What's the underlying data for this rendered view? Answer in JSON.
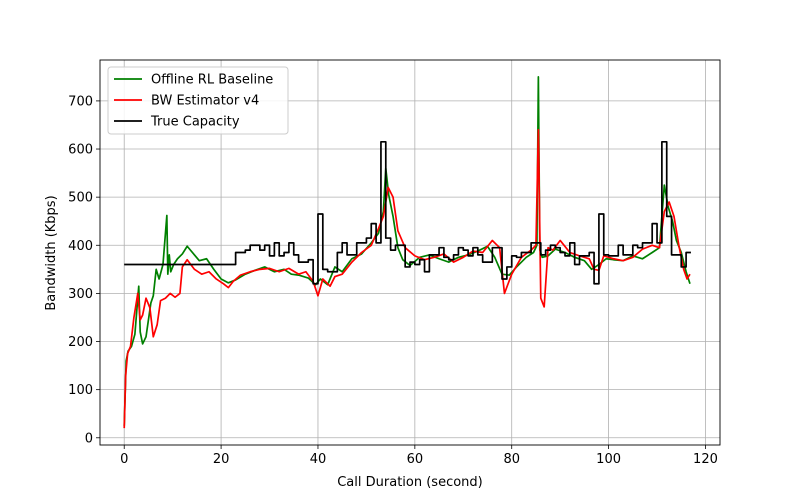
{
  "chart_data": {
    "type": "line",
    "xlabel": "Call Duration (second)",
    "ylabel": "Bandwidth (Kbps)",
    "xlim": [
      -5,
      123
    ],
    "ylim": [
      -15,
      785
    ],
    "xticks": [
      0,
      20,
      40,
      60,
      80,
      100,
      120
    ],
    "yticks": [
      0,
      100,
      200,
      300,
      400,
      500,
      600,
      700
    ],
    "grid": true,
    "legend_position": "top-left",
    "series": [
      {
        "name": "Offline RL Baseline",
        "color": "#008000",
        "x": [
          0,
          0.4,
          0.8,
          1.5,
          2.2,
          3.0,
          3.3,
          3.8,
          4.5,
          5.5,
          6.0,
          6.6,
          7.2,
          8.0,
          8.8,
          9.0,
          9.3,
          9.6,
          10.2,
          11.0,
          12.0,
          13.0,
          14.5,
          15.5,
          17.0,
          18.5,
          20.0,
          21.5,
          23.0,
          25.0,
          27.0,
          29.0,
          31.0,
          33.0,
          34.5,
          36.0,
          38.0,
          39.5,
          40.5,
          42.0,
          43.5,
          45.0,
          47.0,
          49.0,
          51.0,
          52.5,
          53.5,
          54.0,
          54.6,
          55.5,
          56.5,
          57.5,
          59.0,
          61.0,
          63.0,
          65.0,
          67.0,
          69.0,
          71.0,
          73.0,
          75.0,
          76.5,
          78.0,
          79.5,
          81.0,
          83.0,
          84.5,
          85.2,
          85.5,
          85.8,
          86.3,
          87.5,
          89.0,
          91.0,
          93.0,
          95.0,
          96.5,
          98.0,
          99.5,
          101.0,
          103.0,
          105.0,
          107.0,
          109.0,
          110.5,
          111.5,
          112.3,
          113.2,
          114.0,
          115.0,
          116.0,
          116.8
        ],
        "values": [
          25,
          160,
          180,
          190,
          215,
          315,
          220,
          195,
          210,
          280,
          295,
          350,
          330,
          360,
          462,
          340,
          380,
          345,
          360,
          372,
          382,
          398,
          380,
          368,
          372,
          350,
          330,
          322,
          328,
          340,
          348,
          355,
          345,
          350,
          340,
          338,
          332,
          318,
          330,
          318,
          355,
          345,
          372,
          382,
          405,
          425,
          470,
          560,
          505,
          460,
          395,
          370,
          358,
          375,
          380,
          372,
          365,
          375,
          380,
          388,
          398,
          375,
          340,
          338,
          355,
          375,
          385,
          400,
          750,
          390,
          375,
          378,
          392,
          385,
          375,
          368,
          350,
          360,
          372,
          370,
          368,
          378,
          372,
          385,
          395,
          525,
          480,
          450,
          410,
          385,
          345,
          320
        ]
      },
      {
        "name": "BW Estimator v4",
        "color": "#ff0000",
        "x": [
          0,
          0.3,
          0.7,
          1.3,
          2.0,
          2.8,
          3.3,
          3.8,
          4.5,
          5.3,
          6.0,
          6.8,
          7.5,
          8.5,
          9.5,
          10.5,
          11.5,
          12.0,
          13.0,
          14.5,
          16.0,
          17.5,
          19.0,
          20.5,
          21.5,
          22.5,
          24.0,
          26.0,
          28.0,
          30.0,
          32.0,
          34.0,
          36.0,
          37.5,
          39.0,
          40.0,
          41.0,
          42.5,
          43.5,
          45.0,
          47.0,
          49.0,
          51.0,
          52.5,
          53.5,
          54.5,
          55.5,
          56.5,
          58.0,
          60.0,
          62.0,
          64.0,
          66.0,
          68.0,
          70.0,
          72.0,
          74.0,
          76.0,
          77.5,
          78.5,
          80.0,
          82.0,
          84.0,
          85.0,
          85.5,
          86.0,
          86.7,
          87.5,
          88.5,
          90.0,
          92.0,
          94.0,
          96.0,
          97.0,
          98.0,
          99.0,
          101.0,
          103.0,
          105.0,
          107.0,
          109.0,
          110.5,
          111.5,
          112.5,
          113.5,
          114.5,
          115.5,
          116.2,
          116.8
        ],
        "values": [
          20,
          130,
          175,
          190,
          250,
          300,
          245,
          255,
          290,
          270,
          210,
          235,
          285,
          290,
          300,
          292,
          300,
          355,
          370,
          350,
          340,
          345,
          330,
          320,
          312,
          325,
          338,
          345,
          350,
          352,
          345,
          352,
          340,
          345,
          325,
          295,
          330,
          315,
          335,
          340,
          365,
          385,
          400,
          435,
          460,
          520,
          500,
          430,
          395,
          378,
          370,
          375,
          382,
          365,
          375,
          388,
          385,
          410,
          395,
          300,
          340,
          375,
          390,
          400,
          640,
          290,
          272,
          395,
          390,
          410,
          385,
          378,
          372,
          350,
          348,
          378,
          372,
          368,
          375,
          392,
          400,
          395,
          470,
          490,
          460,
          400,
          350,
          330,
          340
        ]
      },
      {
        "name": "True Capacity",
        "color": "#000000",
        "step": true,
        "x": [
          0,
          23,
          25,
          26,
          28,
          29,
          30,
          31,
          32,
          33,
          34,
          35,
          36,
          38,
          39,
          40,
          41,
          42,
          44,
          45,
          46,
          47,
          48,
          50,
          51,
          52,
          53,
          54,
          55,
          56,
          58,
          59,
          60,
          61,
          62,
          63,
          65,
          66,
          67,
          68,
          69,
          70,
          71,
          72,
          73,
          74,
          76,
          78,
          79,
          80,
          81,
          82,
          84,
          85,
          86,
          87,
          88,
          89,
          90,
          91,
          92,
          93,
          94,
          95,
          96,
          97,
          98,
          99,
          100,
          101,
          102,
          103,
          104,
          105,
          106,
          107,
          108,
          109,
          110,
          111,
          112,
          113,
          114,
          115,
          116,
          117
        ],
        "values": [
          360,
          385,
          390,
          400,
          390,
          400,
          378,
          405,
          378,
          385,
          405,
          380,
          365,
          370,
          320,
          465,
          350,
          345,
          385,
          405,
          380,
          380,
          405,
          415,
          445,
          405,
          615,
          415,
          390,
          400,
          355,
          365,
          360,
          370,
          345,
          380,
          395,
          375,
          370,
          380,
          395,
          390,
          378,
          395,
          380,
          365,
          395,
          330,
          355,
          378,
          375,
          385,
          405,
          405,
          380,
          390,
          400,
          395,
          385,
          378,
          405,
          360,
          378,
          378,
          385,
          320,
          465,
          380,
          378,
          378,
          400,
          380,
          380,
          400,
          395,
          405,
          405,
          445,
          405,
          615,
          460,
          380,
          380,
          355,
          385,
          385
        ]
      }
    ]
  }
}
